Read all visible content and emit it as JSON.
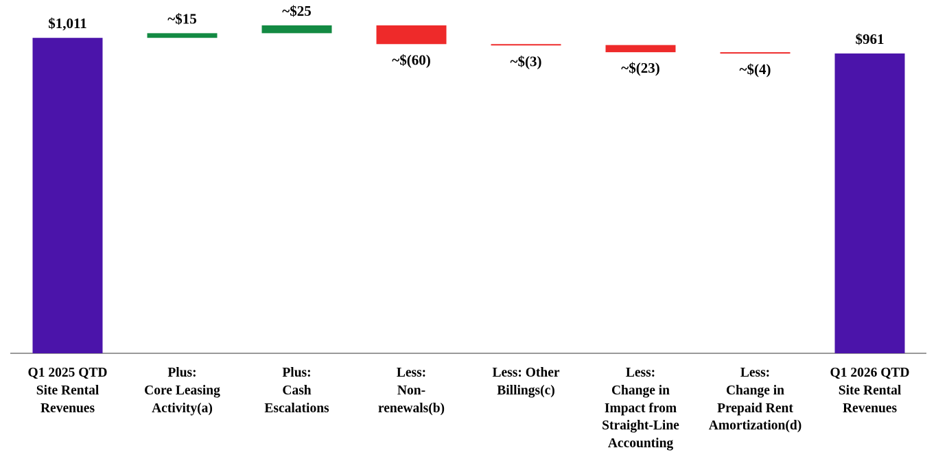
{
  "chart_data": {
    "type": "waterfall",
    "categories": [
      "Q1 2025 QTD\nSite Rental\nRevenues",
      "Plus:\nCore Leasing\nActivity(a)",
      "Plus:\nCash\nEscalations",
      "Less:\nNon-\nrenewals(b)",
      "Less: Other\nBillings(c)",
      "Less:\nChange in\nImpact from\nStraight-Line\nAccounting",
      "Less:\nChange in\nPrepaid Rent\nAmortization(d)",
      "Q1 2026 QTD\nSite Rental\nRevenues"
    ],
    "values": [
      1011,
      15,
      25,
      -60,
      -3,
      -23,
      -4,
      961
    ],
    "value_labels": [
      "$1,011",
      "~$15",
      "~$25",
      "~$(60)",
      "~$(3)",
      "~$(23)",
      "~$(4)",
      "$961"
    ],
    "colors": {
      "total": "#4b14aa",
      "increase": "#138a43",
      "decrease": "#ee2a2a"
    }
  }
}
